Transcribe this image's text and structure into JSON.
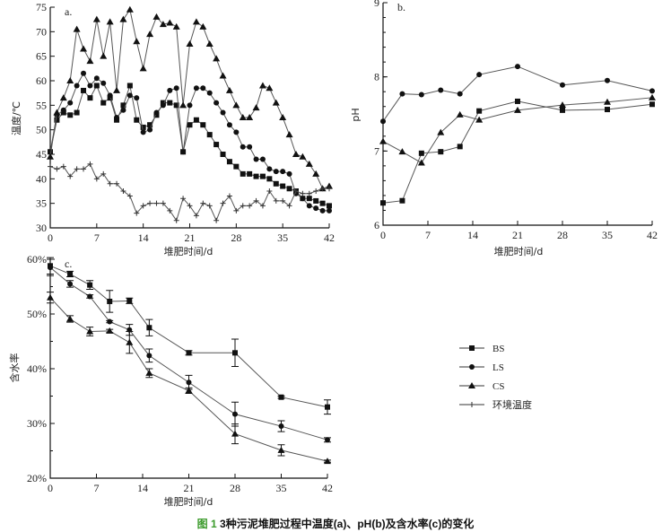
{
  "caption": {
    "fig_no": "图 1",
    "text": "3种污泥堆肥过程中温度(a)、pH(b)及含水率(c)的变化"
  },
  "legend": [
    {
      "name": "BS",
      "marker": "square"
    },
    {
      "name": "LS",
      "marker": "circle"
    },
    {
      "name": "CS",
      "marker": "triangle"
    },
    {
      "name": "环境温度",
      "marker": "plus"
    }
  ],
  "chart_data": [
    {
      "type": "line",
      "panel": "a.",
      "xlabel": "堆肥时间/d",
      "ylabel": "温度/℃",
      "xlim": [
        0,
        42
      ],
      "ylim": [
        30,
        75
      ],
      "xticks": [
        0,
        7,
        14,
        21,
        28,
        35,
        42
      ],
      "yticks": [
        30,
        35,
        40,
        45,
        50,
        55,
        60,
        65,
        70,
        75
      ],
      "x": [
        0,
        1,
        2,
        3,
        4,
        5,
        6,
        7,
        8,
        9,
        10,
        11,
        12,
        13,
        14,
        15,
        16,
        17,
        18,
        19,
        20,
        21,
        22,
        23,
        24,
        25,
        26,
        27,
        28,
        29,
        30,
        31,
        32,
        33,
        34,
        35,
        36,
        37,
        38,
        39,
        40,
        41,
        42
      ],
      "series": [
        {
          "name": "BS",
          "marker": "square",
          "values": [
            45.5,
            52,
            53.5,
            53,
            53.5,
            58,
            56.5,
            59,
            55.5,
            56.5,
            52,
            55,
            59,
            52,
            50.5,
            51,
            53,
            55.5,
            55.5,
            55,
            45.5,
            51,
            52,
            51,
            49,
            47,
            45,
            43.5,
            42.5,
            41,
            41,
            40.5,
            40.5,
            40,
            39,
            38.5,
            38,
            37.5,
            36,
            36,
            35.5,
            35,
            34.5
          ]
        },
        {
          "name": "LS",
          "marker": "circle",
          "values": [
            45.5,
            53,
            54,
            55.5,
            59,
            61.5,
            59,
            60.5,
            59.5,
            57,
            52.5,
            54,
            57,
            56.5,
            49.5,
            50,
            53.5,
            55,
            58,
            58.5,
            45.5,
            55,
            58.5,
            58.5,
            57.5,
            55.5,
            53.5,
            51,
            49.5,
            46.5,
            46.5,
            44,
            44,
            42,
            41.5,
            41.5,
            41,
            37,
            36,
            34.5,
            34,
            33.5,
            33.5
          ]
        },
        {
          "name": "CS",
          "marker": "triangle",
          "values": [
            44.5,
            53.5,
            56.5,
            60,
            70.5,
            66.5,
            64,
            72.5,
            65,
            72,
            58,
            72.5,
            74.5,
            68,
            62.5,
            69.5,
            73,
            71.5,
            71.8,
            71,
            55,
            67.5,
            72,
            71,
            67.5,
            64.5,
            61,
            58,
            55,
            52.5,
            52.5,
            54.5,
            59,
            58.5,
            55.5,
            52.5,
            49,
            45,
            44.5,
            43,
            41,
            38,
            38.5
          ]
        },
        {
          "name": "环境温度",
          "marker": "plus",
          "values": [
            42.5,
            42,
            42.5,
            40.5,
            42,
            42,
            43,
            40,
            41,
            39,
            39,
            37.5,
            36.5,
            33,
            34.5,
            35,
            35,
            35,
            33.5,
            31.5,
            36,
            34.5,
            32.5,
            35,
            34.5,
            31.5,
            35,
            36.5,
            33.5,
            34.5,
            34.5,
            35.5,
            34.5,
            37.5,
            35.5,
            35.5,
            34.5,
            37.5,
            37,
            37,
            37.5,
            38,
            38
          ]
        }
      ]
    },
    {
      "type": "line",
      "panel": "b.",
      "xlabel": "堆肥时间/d",
      "ylabel": "pH",
      "xlim": [
        0,
        42
      ],
      "ylim": [
        6,
        9
      ],
      "xticks": [
        0,
        7,
        14,
        21,
        28,
        35,
        42
      ],
      "yticks": [
        6,
        7,
        8,
        9
      ],
      "x": [
        0,
        3,
        6,
        9,
        12,
        15,
        21,
        28,
        35,
        42
      ],
      "series": [
        {
          "name": "BS",
          "marker": "square",
          "values": [
            6.3,
            6.33,
            6.97,
            6.99,
            7.06,
            7.54,
            7.67,
            7.55,
            7.56,
            7.63
          ]
        },
        {
          "name": "LS",
          "marker": "circle",
          "values": [
            7.4,
            7.77,
            7.76,
            7.82,
            7.77,
            8.03,
            8.14,
            7.89,
            7.95,
            7.81
          ]
        },
        {
          "name": "CS",
          "marker": "triangle",
          "values": [
            7.13,
            6.99,
            6.84,
            7.25,
            7.49,
            7.42,
            7.55,
            7.62,
            7.66,
            7.72
          ]
        }
      ]
    },
    {
      "type": "line",
      "panel": "c.",
      "xlabel": "堆肥时间/d",
      "ylabel": "含水率",
      "xlim": [
        0,
        42
      ],
      "ylim": [
        20,
        60
      ],
      "xticks": [
        0,
        7,
        14,
        21,
        28,
        35,
        42
      ],
      "yticks": [
        20,
        30,
        40,
        50,
        60
      ],
      "yformat": "percent",
      "x": [
        0,
        3,
        6,
        9,
        12,
        15,
        21,
        28,
        35,
        42
      ],
      "series": [
        {
          "name": "BS",
          "marker": "square",
          "values": [
            58.8,
            57.3,
            55.3,
            52.3,
            52.4,
            47.5,
            42.9,
            42.9,
            34.8,
            33.0
          ],
          "errors": [
            1.5,
            0.5,
            0.8,
            2,
            0.5,
            1.5,
            0.4,
            2.5,
            0.2,
            1.3
          ]
        },
        {
          "name": "LS",
          "marker": "circle",
          "values": [
            58.5,
            55.5,
            53.2,
            48.6,
            47.1,
            42.4,
            37.5,
            31.7,
            29.5,
            27.0
          ],
          "errors": [
            1.5,
            0.6,
            0.3,
            0.2,
            1,
            1.2,
            1.3,
            2.2,
            1,
            0.4
          ]
        },
        {
          "name": "CS",
          "marker": "triangle",
          "values": [
            53,
            49.1,
            46.8,
            46.9,
            44.8,
            39.2,
            36,
            28.1,
            25.1,
            23.1
          ],
          "errors": [
            1,
            0.6,
            0.8,
            0.3,
            2,
            0.8,
            0.5,
            1.8,
            1,
            0.2
          ]
        }
      ]
    }
  ]
}
